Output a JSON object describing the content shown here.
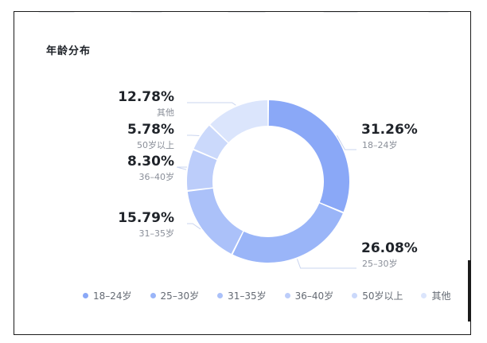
{
  "panel": {
    "title": "年龄分布"
  },
  "chart_data": {
    "type": "pie",
    "subtype": "donut",
    "title": "年龄分布",
    "categories": [
      "18–24岁",
      "25–30岁",
      "31–35岁",
      "36–40岁",
      "50岁以上",
      "其他"
    ],
    "values": [
      31.26,
      26.08,
      15.79,
      8.3,
      5.78,
      12.78
    ],
    "value_labels": [
      "31.26%",
      "26.08%",
      "15.79%",
      "8.30%",
      "5.78%",
      "12.78%"
    ],
    "colors": [
      "#8aa8f7",
      "#9ab5f8",
      "#abc1f9",
      "#bccdfa",
      "#cbd9fb",
      "#dbe5fc"
    ],
    "legend_placement": "bottom"
  }
}
